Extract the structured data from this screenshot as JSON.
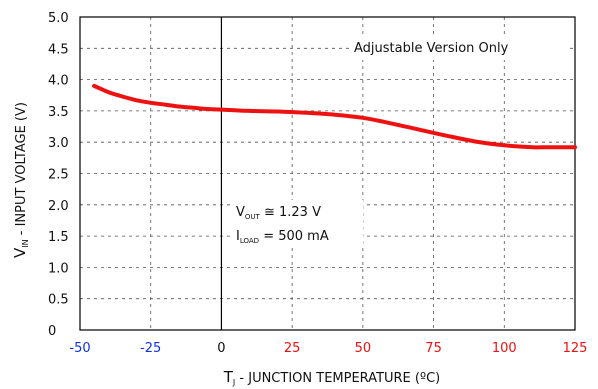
{
  "chart_data": {
    "type": "line",
    "xlabel_main": "T",
    "xlabel_sub": "J",
    "xlabel_rest": " - JUNCTION TEMPERATURE (ºC)",
    "ylabel_main": "V",
    "ylabel_sub": "IN",
    "ylabel_rest": " - INPUT VOLTAGE (V)",
    "xlim": [
      -50,
      125
    ],
    "ylim": [
      0,
      5.0
    ],
    "x_ticks": [
      "-50",
      "-25",
      "0",
      "25",
      "50",
      "75",
      "100",
      "125"
    ],
    "y_ticks": [
      "0",
      "0.5",
      "1.0",
      "1.5",
      "2.0",
      "2.5",
      "3.0",
      "3.5",
      "4.0",
      "4.5",
      "5.0"
    ],
    "grid": true,
    "annotation_top": "Adjustable Version Only",
    "annotation_vout_main": "V",
    "annotation_vout_sub": "OUT",
    "annotation_vout_rest": " ≅ 1.23 V",
    "annotation_iload_main": "I",
    "annotation_iload_sub": "LOAD",
    "annotation_iload_rest": " = 500 mA",
    "series": [
      {
        "color": "#ee1111",
        "x": [
          -45,
          -40,
          -35,
          -30,
          -25,
          -20,
          -15,
          -10,
          -5,
          0,
          10,
          20,
          30,
          40,
          50,
          60,
          70,
          80,
          90,
          100,
          110,
          115,
          120,
          125
        ],
        "y": [
          3.9,
          3.8,
          3.73,
          3.67,
          3.63,
          3.6,
          3.57,
          3.55,
          3.53,
          3.52,
          3.5,
          3.49,
          3.47,
          3.44,
          3.39,
          3.3,
          3.2,
          3.1,
          3.01,
          2.95,
          2.92,
          2.92,
          2.92,
          2.92
        ]
      }
    ]
  }
}
